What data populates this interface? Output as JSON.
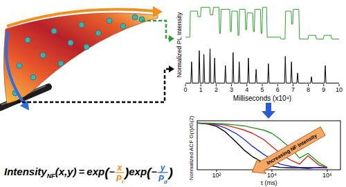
{
  "chart_data": [
    {
      "type": "line",
      "y_label": "Normalized PL Intensity",
      "x": [
        0,
        0.28,
        0.32,
        0.78,
        0.82,
        0.98,
        1.02,
        1.58,
        1.62,
        1.78,
        1.82,
        2.18,
        2.22,
        2.28,
        2.32,
        2.88,
        2.92,
        2.98,
        3.02,
        3.38,
        3.42,
        3.48,
        3.52,
        3.88,
        3.92,
        3.98,
        4.02,
        4.38,
        4.42,
        4.48,
        4.52,
        4.88,
        4.92,
        4.98,
        5.02,
        5.28,
        5.32,
        6.18,
        6.22,
        6.48,
        6.52,
        6.88,
        6.92,
        6.98,
        7.02,
        7.38,
        7.42,
        7.98,
        8.02,
        8.48,
        8.52,
        8.98,
        9.02,
        9.48,
        9.52,
        10
      ],
      "series": [
        {
          "color": "#2e9e2e",
          "values": [
            0.15,
            0.15,
            0.85,
            0.85,
            0.7,
            0.7,
            0.95,
            0.95,
            0.75,
            0.75,
            0.95,
            0.95,
            0.25,
            0.25,
            0.9,
            0.9,
            0.3,
            0.3,
            0.85,
            0.85,
            0.2,
            0.2,
            0.9,
            0.9,
            0.35,
            0.35,
            0.8,
            0.8,
            0.3,
            0.3,
            0.9,
            0.9,
            0.25,
            0.25,
            0.95,
            0.95,
            0.15,
            0.15,
            0.1,
            0.1,
            0.85,
            0.85,
            0.5,
            0.5,
            0.9,
            0.9,
            0.1,
            0.1,
            0.2,
            0.2,
            0.1,
            0.1,
            0.2,
            0.2,
            0.1,
            0.1
          ]
        }
      ],
      "xlim": [
        0,
        10
      ],
      "ylim": [
        0,
        1
      ],
      "tick_labels": false
    },
    {
      "type": "line",
      "x_label": "Milliseconds (x10⁴)",
      "x": [
        0,
        0.35,
        0.4,
        0.45,
        0.85,
        0.9,
        0.95,
        1.15,
        1.2,
        1.25,
        1.55,
        1.6,
        1.65,
        1.85,
        1.9,
        1.95,
        2.55,
        2.6,
        2.65,
        3.05,
        3.1,
        3.15,
        3.45,
        3.5,
        3.55,
        4.05,
        4.1,
        4.15,
        4.55,
        4.6,
        4.65,
        5.35,
        5.4,
        5.45,
        6.45,
        6.5,
        6.55,
        6.85,
        6.9,
        6.95,
        7.25,
        7.3,
        7.35,
        8.15,
        8.2,
        8.25,
        9.05,
        9.1,
        9.15,
        10
      ],
      "series": [
        {
          "color": "#000000",
          "values": [
            0.03,
            0.03,
            0.6,
            0.03,
            0.03,
            0.9,
            0.03,
            0.03,
            0.8,
            0.03,
            0.03,
            0.95,
            0.03,
            0.03,
            0.7,
            0.03,
            0.03,
            0.5,
            0.03,
            0.03,
            0.85,
            0.03,
            0.03,
            0.6,
            0.03,
            0.03,
            0.7,
            0.03,
            0.03,
            0.4,
            0.03,
            0.03,
            0.55,
            0.03,
            0.03,
            0.75,
            0.03,
            0.03,
            0.6,
            0.03,
            0.03,
            0.3,
            0.03,
            0.03,
            0.2,
            0.03,
            0.03,
            0.5,
            0.03,
            0.03
          ]
        }
      ],
      "xlim": [
        0,
        10
      ],
      "ylim": [
        0,
        1
      ],
      "xticks": [
        0,
        1,
        2,
        3,
        4,
        5,
        6,
        7,
        8,
        9,
        10
      ],
      "tick_labels": "x"
    },
    {
      "type": "line",
      "log": "x",
      "y_label": "Normalized ACF G(τ)/G(2)",
      "x_label": "τ (ms)",
      "annotation": "Increasing NF Intensity",
      "x": [
        20,
        50,
        100,
        200,
        500,
        1000,
        2000,
        5000,
        10000,
        20000,
        50000,
        100000,
        200000,
        500000,
        1000000
      ],
      "series": [
        {
          "color": "#000000",
          "values": [
            1.0,
            0.98,
            0.93,
            0.82,
            0.6,
            0.42,
            0.28,
            0.15,
            0.08,
            0.05,
            0.04,
            0.04,
            0.03,
            0.05,
            0.04
          ]
        },
        {
          "color": "#2b2bd8",
          "values": [
            1.0,
            0.99,
            0.96,
            0.9,
            0.78,
            0.65,
            0.5,
            0.33,
            0.22,
            0.12,
            0.07,
            0.05,
            0.05,
            0.04,
            0.05
          ]
        },
        {
          "color": "#e0201b",
          "values": [
            1.0,
            0.99,
            0.98,
            0.96,
            0.9,
            0.85,
            0.78,
            0.65,
            0.5,
            0.35,
            0.2,
            0.12,
            0.3,
            0.1,
            0.05
          ]
        },
        {
          "color": "#1f9a1f",
          "values": [
            1.0,
            1.0,
            0.99,
            0.98,
            0.96,
            0.94,
            0.9,
            0.85,
            0.78,
            0.65,
            0.45,
            0.25,
            0.35,
            0.15,
            0.05
          ]
        }
      ],
      "xlim": [
        20,
        3000000
      ],
      "ylim": [
        0,
        1.05
      ],
      "xticks": [
        {
          "value": 100,
          "label": "10²"
        },
        {
          "value": 10000,
          "label": "10⁴"
        },
        {
          "value": 1000000,
          "label": "10⁶"
        }
      ],
      "tick_labels": "x"
    }
  ],
  "diagram": {
    "formula": {
      "name": "Intensity",
      "subscript": "NF",
      "vars": "(x,y)",
      "equals": "=",
      "func": "exp",
      "open": "(",
      "close": ")",
      "minus": "−",
      "terms": [
        {
          "num": "x",
          "den": "P",
          "den_sub": "l",
          "color": "#f08a1e"
        },
        {
          "num": "y",
          "den": "P",
          "den_sub": "d",
          "color": "#2f6fd8"
        }
      ]
    }
  }
}
